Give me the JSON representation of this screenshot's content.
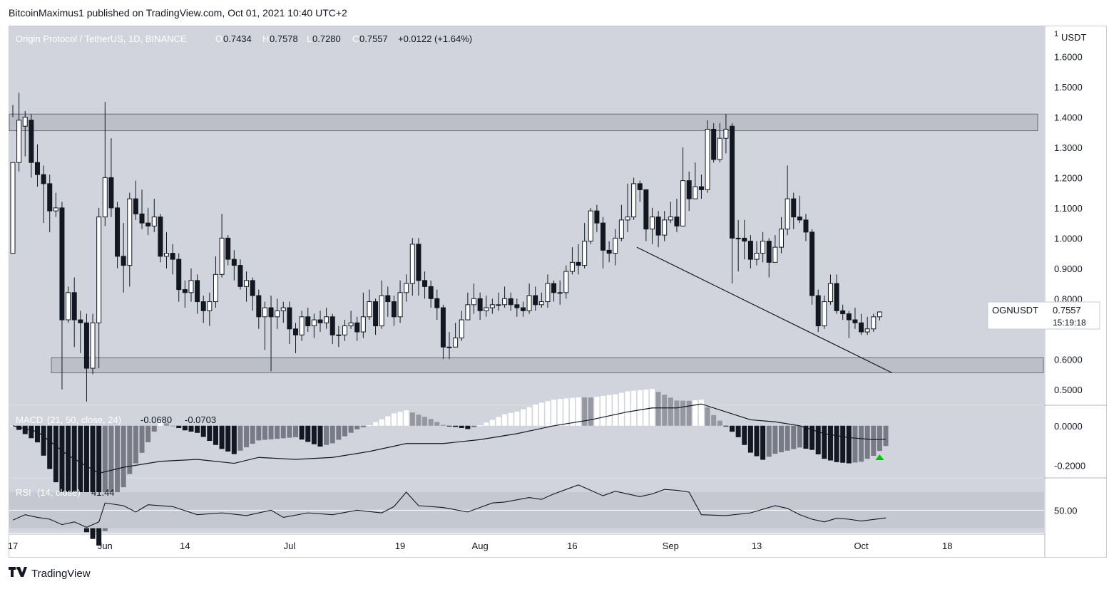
{
  "header": {
    "published_line": "BitcoinMaximus1 published on TradingView.com, Oct 01, 2021 10:40 UTC+2"
  },
  "footer": {
    "brand": "TradingView",
    "logo_icon": "tradingview-logo-icon"
  },
  "chart_data": {
    "type": "candlestick",
    "symbol_line": {
      "name": "Origin Protocol / TetherUS, 1D, BINANCE",
      "o_label": "O",
      "o": "0.7434",
      "h_label": "H",
      "h": "0.7578",
      "l_label": "L",
      "l": "0.7280",
      "c_label": "C",
      "c": "0.7557",
      "change": "+0.0122 (+1.64%)"
    },
    "currency": "USDT",
    "price_ticks": [
      "1.6000",
      "1.5000",
      "1.4000",
      "1.3000",
      "1.2000",
      "1.1000",
      "1.0000",
      "0.9000",
      "0.8000",
      "0.6000",
      "0.5000"
    ],
    "price_tick_values": [
      1.6,
      1.5,
      1.4,
      1.3,
      1.2,
      1.1,
      1.0,
      0.9,
      0.8,
      0.6,
      0.5
    ],
    "ylim": [
      0.45,
      1.7
    ],
    "price_tag": {
      "symbol": "OGNUSDT",
      "price": "0.7557",
      "countdown": "15:19:18"
    },
    "x_labels": [
      "17",
      "Jun",
      "14",
      "Jul",
      "19",
      "Aug",
      "16",
      "Sep",
      "13",
      "Oct",
      "18"
    ],
    "x_label_days": [
      0,
      15,
      28,
      45,
      63,
      76,
      91,
      107,
      121,
      138,
      152
    ],
    "x_start_date": "2021-05-17",
    "zones": [
      {
        "name": "resistance-zone",
        "from": 1.355,
        "to": 1.41
      },
      {
        "name": "support-zone",
        "from": 0.555,
        "to": 0.605
      }
    ],
    "trendline": {
      "day_start": 101.5,
      "price_start": 0.97,
      "day_end": 143,
      "price_end": 0.555
    },
    "candles": [
      [
        0.95,
        1.25,
        1.44,
        1.4
      ],
      [
        1.25,
        1.39,
        1.48,
        1.22
      ],
      [
        1.37,
        1.4,
        1.42,
        1.27
      ],
      [
        1.39,
        1.25,
        1.41,
        1.2
      ],
      [
        1.25,
        1.21,
        1.31,
        1.17
      ],
      [
        1.21,
        1.18,
        1.24,
        1.05
      ],
      [
        1.18,
        1.09,
        1.21,
        1.02
      ],
      [
        1.09,
        1.1,
        1.15,
        1.07
      ],
      [
        1.1,
        0.73,
        1.12,
        0.5
      ],
      [
        0.73,
        0.82,
        0.84,
        0.72
      ],
      [
        0.82,
        0.73,
        0.87,
        0.64
      ],
      [
        0.73,
        0.72,
        0.76,
        0.62
      ],
      [
        0.72,
        0.57,
        0.75,
        0.46
      ],
      [
        0.57,
        0.72,
        0.75,
        0.55
      ],
      [
        0.72,
        1.07,
        1.1,
        0.57
      ],
      [
        1.07,
        1.2,
        1.45,
        1.04
      ],
      [
        1.2,
        1.1,
        1.33,
        1.07
      ],
      [
        1.1,
        0.94,
        1.12,
        0.9
      ],
      [
        0.94,
        0.91,
        1.05,
        0.82
      ],
      [
        0.91,
        1.13,
        1.15,
        0.84
      ],
      [
        1.13,
        1.08,
        1.19,
        1.06
      ],
      [
        1.08,
        1.05,
        1.16,
        1.03
      ],
      [
        1.05,
        1.04,
        1.1,
        1.01
      ],
      [
        1.04,
        1.07,
        1.13,
        1.02
      ],
      [
        1.07,
        0.94,
        1.08,
        0.92
      ],
      [
        0.94,
        0.95,
        1.02,
        0.9
      ],
      [
        0.95,
        0.93,
        0.98,
        0.88
      ],
      [
        0.93,
        0.83,
        0.95,
        0.79
      ],
      [
        0.83,
        0.82,
        0.86,
        0.77
      ],
      [
        0.82,
        0.86,
        0.9,
        0.79
      ],
      [
        0.86,
        0.79,
        0.88,
        0.75
      ],
      [
        0.79,
        0.76,
        0.81,
        0.72
      ],
      [
        0.76,
        0.79,
        0.82,
        0.71
      ],
      [
        0.79,
        0.88,
        0.94,
        0.77
      ],
      [
        0.88,
        1.0,
        1.08,
        0.87
      ],
      [
        1.0,
        0.93,
        1.01,
        0.91
      ],
      [
        0.93,
        0.91,
        0.96,
        0.86
      ],
      [
        0.91,
        0.84,
        0.93,
        0.83
      ],
      [
        0.84,
        0.86,
        0.89,
        0.79
      ],
      [
        0.86,
        0.81,
        0.87,
        0.76
      ],
      [
        0.81,
        0.74,
        0.83,
        0.7
      ],
      [
        0.74,
        0.77,
        0.79,
        0.63
      ],
      [
        0.77,
        0.74,
        0.81,
        0.56
      ],
      [
        0.74,
        0.76,
        0.8,
        0.7
      ],
      [
        0.76,
        0.77,
        0.79,
        0.72
      ],
      [
        0.77,
        0.7,
        0.79,
        0.65
      ],
      [
        0.7,
        0.68,
        0.72,
        0.62
      ],
      [
        0.68,
        0.74,
        0.76,
        0.66
      ],
      [
        0.74,
        0.71,
        0.77,
        0.69
      ],
      [
        0.71,
        0.73,
        0.75,
        0.67
      ],
      [
        0.73,
        0.72,
        0.76,
        0.69
      ],
      [
        0.72,
        0.74,
        0.77,
        0.7
      ],
      [
        0.74,
        0.68,
        0.75,
        0.65
      ],
      [
        0.68,
        0.68,
        0.71,
        0.64
      ],
      [
        0.68,
        0.71,
        0.73,
        0.66
      ],
      [
        0.71,
        0.72,
        0.76,
        0.7
      ],
      [
        0.72,
        0.69,
        0.74,
        0.66
      ],
      [
        0.69,
        0.74,
        0.82,
        0.67
      ],
      [
        0.74,
        0.79,
        0.83,
        0.73
      ],
      [
        0.79,
        0.71,
        0.8,
        0.68
      ],
      [
        0.71,
        0.81,
        0.86,
        0.7
      ],
      [
        0.81,
        0.79,
        0.84,
        0.74
      ],
      [
        0.79,
        0.74,
        0.81,
        0.71
      ],
      [
        0.74,
        0.82,
        0.86,
        0.72
      ],
      [
        0.82,
        0.85,
        0.88,
        0.79
      ],
      [
        0.85,
        0.98,
        1.0,
        0.81
      ],
      [
        0.98,
        0.86,
        1.0,
        0.81
      ],
      [
        0.86,
        0.84,
        0.89,
        0.8
      ],
      [
        0.84,
        0.8,
        0.86,
        0.77
      ],
      [
        0.8,
        0.77,
        0.83,
        0.73
      ],
      [
        0.77,
        0.64,
        0.78,
        0.6
      ],
      [
        0.64,
        0.64,
        0.69,
        0.6
      ],
      [
        0.64,
        0.67,
        0.72,
        0.64
      ],
      [
        0.67,
        0.73,
        0.76,
        0.66
      ],
      [
        0.73,
        0.78,
        0.82,
        0.73
      ],
      [
        0.78,
        0.8,
        0.85,
        0.75
      ],
      [
        0.8,
        0.76,
        0.82,
        0.73
      ],
      [
        0.76,
        0.77,
        0.81,
        0.74
      ],
      [
        0.77,
        0.78,
        0.8,
        0.75
      ],
      [
        0.78,
        0.78,
        0.82,
        0.76
      ],
      [
        0.78,
        0.8,
        0.84,
        0.77
      ],
      [
        0.8,
        0.78,
        0.82,
        0.76
      ],
      [
        0.78,
        0.77,
        0.8,
        0.74
      ],
      [
        0.77,
        0.76,
        0.79,
        0.74
      ],
      [
        0.76,
        0.81,
        0.85,
        0.75
      ],
      [
        0.81,
        0.78,
        0.84,
        0.76
      ],
      [
        0.78,
        0.79,
        0.82,
        0.77
      ],
      [
        0.79,
        0.85,
        0.88,
        0.77
      ],
      [
        0.85,
        0.82,
        0.86,
        0.79
      ],
      [
        0.82,
        0.82,
        0.86,
        0.78
      ],
      [
        0.82,
        0.89,
        0.91,
        0.8
      ],
      [
        0.89,
        0.92,
        0.97,
        0.88
      ],
      [
        0.92,
        0.91,
        0.98,
        0.88
      ],
      [
        0.91,
        0.99,
        1.05,
        0.9
      ],
      [
        0.99,
        1.09,
        1.1,
        0.98
      ],
      [
        1.09,
        1.05,
        1.11,
        1.02
      ],
      [
        1.05,
        0.96,
        1.07,
        0.9
      ],
      [
        0.96,
        0.95,
        0.99,
        0.92
      ],
      [
        0.95,
        1.0,
        1.03,
        0.91
      ],
      [
        1.0,
        1.06,
        1.11,
        0.99
      ],
      [
        1.06,
        1.07,
        1.18,
        1.02
      ],
      [
        1.07,
        1.18,
        1.2,
        1.06
      ],
      [
        1.18,
        1.16,
        1.19,
        1.12
      ],
      [
        1.16,
        1.03,
        1.16,
        0.99
      ],
      [
        1.03,
        1.07,
        1.1,
        0.98
      ],
      [
        1.07,
        1.01,
        1.09,
        0.97
      ],
      [
        1.01,
        1.06,
        1.09,
        0.99
      ],
      [
        1.06,
        1.07,
        1.12,
        1.05
      ],
      [
        1.07,
        1.04,
        1.13,
        1.02
      ],
      [
        1.04,
        1.19,
        1.3,
        1.04
      ],
      [
        1.19,
        1.13,
        1.22,
        1.09
      ],
      [
        1.13,
        1.17,
        1.25,
        1.16
      ],
      [
        1.17,
        1.16,
        1.21,
        1.13
      ],
      [
        1.16,
        1.36,
        1.39,
        1.15
      ],
      [
        1.36,
        1.26,
        1.38,
        1.25
      ],
      [
        1.26,
        1.33,
        1.38,
        1.25
      ],
      [
        1.33,
        1.36,
        1.41,
        1.28
      ],
      [
        1.37,
        1.0,
        1.38,
        0.85
      ],
      [
        1.0,
        1.0,
        1.06,
        0.89
      ],
      [
        1.0,
        0.99,
        1.06,
        0.93
      ],
      [
        0.99,
        0.93,
        1.01,
        0.9
      ],
      [
        0.93,
        0.95,
        0.99,
        0.91
      ],
      [
        0.95,
        0.99,
        1.02,
        0.92
      ],
      [
        0.99,
        0.92,
        1.0,
        0.87
      ],
      [
        0.92,
        0.97,
        1.01,
        0.93
      ],
      [
        0.97,
        1.03,
        1.07,
        0.95
      ],
      [
        1.03,
        1.13,
        1.24,
        1.01
      ],
      [
        1.13,
        1.07,
        1.15,
        1.03
      ],
      [
        1.07,
        1.06,
        1.14,
        1.05
      ],
      [
        1.06,
        1.02,
        1.08,
        0.99
      ],
      [
        1.02,
        0.81,
        1.03,
        0.78
      ],
      [
        0.81,
        0.71,
        0.83,
        0.69
      ],
      [
        0.71,
        0.79,
        0.81,
        0.7
      ],
      [
        0.79,
        0.85,
        0.88,
        0.78
      ],
      [
        0.85,
        0.76,
        0.88,
        0.75
      ],
      [
        0.76,
        0.75,
        0.78,
        0.73
      ],
      [
        0.75,
        0.73,
        0.76,
        0.67
      ],
      [
        0.73,
        0.72,
        0.77,
        0.7
      ],
      [
        0.72,
        0.69,
        0.75,
        0.68
      ],
      [
        0.69,
        0.7,
        0.74,
        0.68
      ],
      [
        0.7,
        0.74,
        0.75,
        0.69
      ],
      [
        0.74,
        0.756,
        0.758,
        0.728
      ]
    ],
    "macd": {
      "label": "MACD",
      "params": "(21, 50, close, 24)",
      "macd_value": "-0.0680",
      "signal_value": "-0.0703",
      "ticks": [
        "0.0000",
        "-0.2000"
      ],
      "tick_values": [
        0.0,
        -0.2
      ],
      "ylim": [
        -0.26,
        0.1
      ],
      "line_points": [
        [
          0,
          0.0
        ],
        [
          4,
          -0.03
        ],
        [
          9,
          -0.15
        ],
        [
          14,
          -0.24
        ],
        [
          18,
          -0.21
        ],
        [
          24,
          -0.18
        ],
        [
          30,
          -0.17
        ],
        [
          36,
          -0.19
        ],
        [
          40,
          -0.16
        ],
        [
          46,
          -0.17
        ],
        [
          52,
          -0.16
        ],
        [
          58,
          -0.13
        ],
        [
          64,
          -0.09
        ],
        [
          70,
          -0.09
        ],
        [
          76,
          -0.07
        ],
        [
          82,
          -0.04
        ],
        [
          88,
          0.0
        ],
        [
          94,
          0.03
        ],
        [
          100,
          0.07
        ],
        [
          104,
          0.09
        ],
        [
          108,
          0.09
        ],
        [
          112,
          0.11
        ],
        [
          116,
          0.07
        ],
        [
          120,
          0.03
        ],
        [
          124,
          0.02
        ],
        [
          128,
          0.0
        ],
        [
          132,
          -0.04
        ],
        [
          136,
          -0.06
        ],
        [
          140,
          -0.07
        ],
        [
          142,
          -0.068
        ]
      ],
      "buy_arrow_day": 141
    },
    "rsi": {
      "label": "RSI",
      "params": "(14, close)",
      "value": "41.44",
      "ticks": [
        "50.00"
      ],
      "tick_values": [
        50
      ],
      "ylim": [
        25,
        85
      ],
      "line_points": [
        [
          0,
          39
        ],
        [
          2,
          45
        ],
        [
          4,
          42
        ],
        [
          6,
          40
        ],
        [
          8,
          34
        ],
        [
          10,
          37
        ],
        [
          12,
          31
        ],
        [
          14,
          37
        ],
        [
          15,
          58
        ],
        [
          18,
          55
        ],
        [
          20,
          48
        ],
        [
          22,
          56
        ],
        [
          26,
          54
        ],
        [
          30,
          45
        ],
        [
          34,
          47
        ],
        [
          38,
          44
        ],
        [
          42,
          50
        ],
        [
          44,
          42
        ],
        [
          48,
          47
        ],
        [
          52,
          45
        ],
        [
          56,
          50
        ],
        [
          60,
          47
        ],
        [
          62,
          54
        ],
        [
          64,
          70
        ],
        [
          66,
          55
        ],
        [
          70,
          53
        ],
        [
          74,
          48
        ],
        [
          78,
          58
        ],
        [
          80,
          59
        ],
        [
          84,
          64
        ],
        [
          86,
          62
        ],
        [
          88,
          68
        ],
        [
          90,
          73
        ],
        [
          92,
          78
        ],
        [
          94,
          72
        ],
        [
          96,
          66
        ],
        [
          98,
          71
        ],
        [
          100,
          68
        ],
        [
          102,
          65
        ],
        [
          104,
          68
        ],
        [
          106,
          73
        ],
        [
          108,
          72
        ],
        [
          110,
          70
        ],
        [
          112,
          45
        ],
        [
          116,
          44
        ],
        [
          120,
          47
        ],
        [
          124,
          55
        ],
        [
          126,
          52
        ],
        [
          128,
          45
        ],
        [
          130,
          40
        ],
        [
          132,
          37
        ],
        [
          134,
          41
        ],
        [
          136,
          40
        ],
        [
          138,
          38
        ],
        [
          142,
          41.4
        ]
      ]
    }
  }
}
